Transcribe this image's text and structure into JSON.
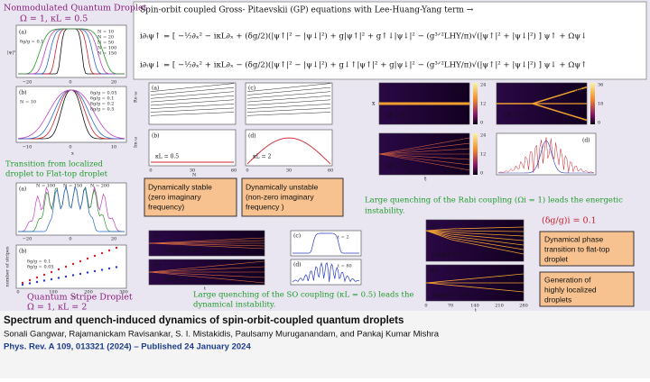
{
  "header": {
    "title": "Spin-orbit coupled Gross- Pitaevskii (GP) equations with Lee-Huang-Yang term →",
    "eq1": "i∂ₜψ↑ = [ −½∂ₓ² − iκL∂ₓ + (δg/2)(|ψ↑|² − |ψ↓|²) + g|ψ↑|² + g↑↓|ψ↓|² − (g³ᐟ²LHY/π)√(|ψ↑|² + |ψ↓|²) ] ψ↑ + Ωψ↓",
    "eq2": "i∂ₜψ↓ = [ −½∂ₓ² + iκL∂ₓ − (δg/2)(|ψ↑|² − |ψ↓|²) + g↓↑|ψ↑|² + g|ψ↓|² − (g³ᐟ²LHY/π)√(|ψ↑|² + |ψ↓|²) ] ψ↓ + Ωψ↑"
  },
  "left": {
    "top_title": "Nonmodulated Quantum Droplet",
    "top_params": "Ω = 1, κL = 0.5",
    "plot_a": {
      "label": "(a)",
      "note": "δg/g = 0.1",
      "legend": [
        "N = 10",
        "N = 20",
        "N = 50",
        "N = 100",
        "N = 150"
      ],
      "xticks": [
        "−20",
        "0",
        "20"
      ]
    },
    "plot_b": {
      "label": "(b)",
      "note": "N = 10",
      "legend": [
        "δg/g = 0.05",
        "δg/g = 0.1",
        "δg/g = 0.2",
        "δg/g = 0.5"
      ],
      "xticks": [
        "−10",
        "0",
        "10"
      ]
    },
    "xlabel": "x",
    "ylabel": "|ψ|²",
    "transition": [
      "Transition from localized",
      "droplet to Flat-top droplet"
    ],
    "stripe_a": {
      "label": "(a)",
      "legend": [
        "N = 100",
        "N = 150",
        "N = 200"
      ],
      "xticks": [
        "−20",
        "0",
        "20"
      ]
    },
    "stripe_b": {
      "label": "(b)",
      "legend": [
        "δg/g = 0.1",
        "δg/g = 0.05"
      ],
      "ylabel": "number of stripes",
      "xlabel": "N",
      "xticks": [
        "0",
        "100",
        "200",
        "300"
      ]
    },
    "bottom_title": "Quantum Stripe Droplet",
    "bottom_params": "Ω = 1, κL = 2"
  },
  "middle": {
    "labels": [
      "(a)",
      "(b)",
      "(c)",
      "(d)"
    ],
    "re": "Re ω",
    "im": "Im ω",
    "kb": "κL = 0.5",
    "kd": "κL = 2",
    "xlabel": "N",
    "xticks": [
      "0",
      "30",
      "60"
    ],
    "stable": [
      "Dynamically stable",
      "(zero imaginary",
      "frequency)"
    ],
    "unstable": [
      "Dynamically unstable",
      "(non-zero imaginary",
      "frequency )"
    ]
  },
  "rabi": {
    "labels": [
      "(a)",
      "(b)",
      "(c)",
      "(d)"
    ],
    "omegas": [
      "Ωf = 4",
      "Ωf = 11",
      "Ωf = 30"
    ],
    "cbar_a": [
      "24",
      "12",
      "0"
    ],
    "cbar_b": [
      "36",
      "18",
      "0"
    ],
    "cbar_c": [
      "24",
      "12",
      "0"
    ],
    "xlabel": "t",
    "ylabel": "x",
    "caption": [
      "Large quenching of the Rabi coupling (Ωi = 1) leads the energetic",
      "instability."
    ]
  },
  "so": {
    "labels": [
      "(a)",
      "(b)",
      "(c)",
      "(d)"
    ],
    "kappas": [
      "(κL)f = 1.28",
      "(κL)f = 2"
    ],
    "times": [
      "t = 2",
      "t = 80"
    ],
    "xlabel": "t",
    "caption": [
      "Large quenching of the SO coupling (κL = 0.5) leads the",
      "dynamical instability."
    ]
  },
  "dg": {
    "title": "(δg/g)i = 0.1",
    "labels": [
      "(a)",
      "(b)"
    ],
    "values": [
      "(δg/g)f = 0.2",
      "(δg/g)f = 0.01"
    ],
    "xticks": [
      "0",
      "70",
      "140",
      "210",
      "280"
    ],
    "xlabel": "t",
    "box1": [
      "Dynamical phase",
      "transition to flat-top",
      "droplet"
    ],
    "box2": [
      "Generation of",
      "highly localized",
      "droplets"
    ]
  },
  "footer": {
    "title": "Spectrum and quench-induced dynamics of spin-orbit-coupled quantum droplets",
    "authors": "Sonali Gangwar, Rajamanickam Ravisankar, S. I. Mistakidis,  Paulsamy Muruganandam, and Pankaj Kumar Mishra",
    "citation": "Phys. Rev. A 109, 013321 (2024) – Published 24 January 2024"
  }
}
